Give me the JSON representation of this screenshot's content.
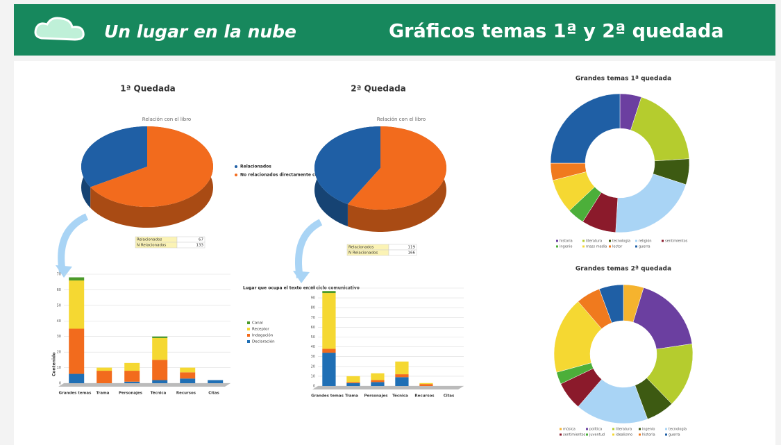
{
  "header": {
    "logo": "Un lugar en la nube",
    "title": "Gráficos temas 1ª y 2ª quedada"
  },
  "chart_data": [
    {
      "type": "pie",
      "title": "1ª Quedada",
      "subtitle": "Relación con el libro",
      "categories": [
        "Relacionados",
        "No relacionados directamente con la novela"
      ],
      "table_labels": [
        "Relacionados",
        "N Relacionados"
      ],
      "values": [
        67,
        133
      ],
      "colors": [
        "#1f5fa5",
        "#f26b1d"
      ],
      "legend": true
    },
    {
      "type": "pie",
      "title": "2ª Quedada",
      "subtitle": "Relación con el libro",
      "table_labels": [
        "Relacionados",
        "N Relacionados"
      ],
      "values": [
        119,
        166
      ],
      "colors": [
        "#1f5fa5",
        "#f26b1d"
      ],
      "legend": false
    },
    {
      "type": "bar",
      "y_label": "Contenido",
      "legend_title": "Lugar que ocupa el texto en el ciclo comunicativo",
      "categories": [
        "Grandes temas",
        "Trama",
        "Personajes",
        "Técnica",
        "Recursos",
        "Citas"
      ],
      "series": [
        {
          "name": "Declaración",
          "color": "#1f6fb5",
          "values": [
            6,
            0,
            1,
            2,
            3,
            2
          ]
        },
        {
          "name": "Indagación",
          "color": "#f26b1d",
          "values": [
            29,
            8,
            7,
            13,
            4,
            0
          ]
        },
        {
          "name": "Receptor",
          "color": "#f5d832",
          "values": [
            31,
            2,
            5,
            14,
            3,
            0
          ]
        },
        {
          "name": "Canal",
          "color": "#4c9a2a",
          "values": [
            2,
            0,
            0,
            1,
            0,
            0
          ]
        }
      ],
      "ylim": [
        0,
        70
      ],
      "yticks": [
        0,
        10,
        20,
        30,
        40,
        50,
        60,
        70
      ],
      "grid": true
    },
    {
      "type": "bar",
      "categories": [
        "Grandes temas",
        "Trama",
        "Personajes",
        "Técnica",
        "Recursos",
        "Citas"
      ],
      "series": [
        {
          "name": "Declaración",
          "color": "#1f6fb5",
          "values": [
            34,
            3,
            4,
            9,
            0,
            0
          ]
        },
        {
          "name": "Indagación",
          "color": "#f26b1d",
          "values": [
            4,
            1,
            2,
            3,
            2,
            0
          ]
        },
        {
          "name": "Receptor",
          "color": "#f5d832",
          "values": [
            57,
            6,
            7,
            13,
            1,
            0
          ]
        },
        {
          "name": "Canal",
          "color": "#4c9a2a",
          "values": [
            2,
            0,
            0,
            0,
            0,
            0
          ]
        }
      ],
      "ylim": [
        0,
        100
      ],
      "yticks": [
        0,
        10,
        20,
        30,
        40,
        50,
        60,
        70,
        80,
        90,
        100
      ],
      "grid": true
    },
    {
      "type": "donut",
      "title": "Grandes temas 1ª quedada",
      "categories": [
        "historia",
        "literatura",
        "tecnología",
        "religión",
        "sentimientos",
        "ingenio",
        "mass media",
        "lector",
        "guerra"
      ],
      "values": [
        5,
        19,
        6,
        21,
        8,
        4,
        8,
        4,
        25
      ],
      "colors": [
        "#6b3fa0",
        "#b5cc2e",
        "#3d5a12",
        "#a9d4f5",
        "#8b1a2b",
        "#4caf3a",
        "#f5d832",
        "#f07a1e",
        "#1f5fa5"
      ]
    },
    {
      "type": "donut",
      "title": "Grandes temas 2ª quedada",
      "categories": [
        "música",
        "política",
        "literatura",
        "ingenio",
        "tecnología",
        "sentimientos",
        "juventud",
        "idealismo",
        "historia",
        "guerra"
      ],
      "values": [
        5,
        19,
        16,
        7,
        18,
        7,
        3,
        19,
        6,
        6
      ],
      "colors": [
        "#f5b32e",
        "#6b3fa0",
        "#b5cc2e",
        "#3d5a12",
        "#a9d4f5",
        "#8b1a2b",
        "#4caf3a",
        "#f5d832",
        "#f07a1e",
        "#1f5fa5"
      ]
    }
  ]
}
